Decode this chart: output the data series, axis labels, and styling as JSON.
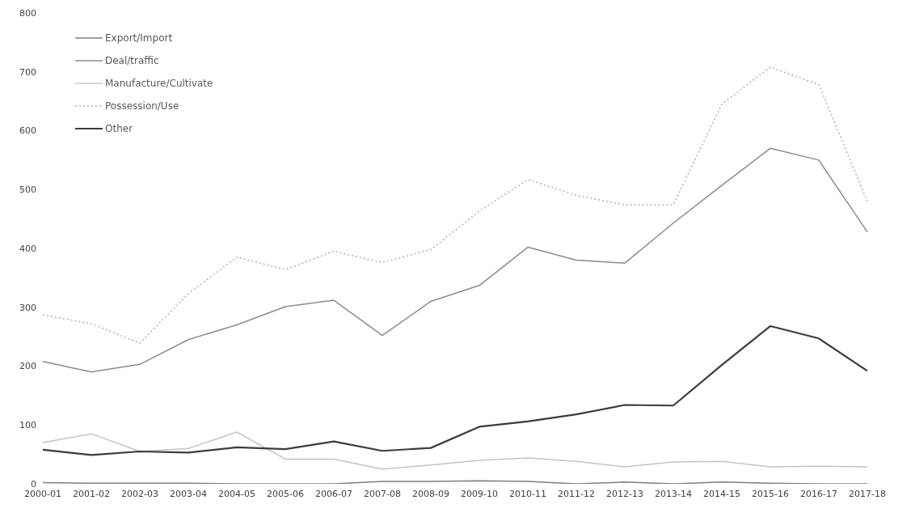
{
  "chart_data": {
    "type": "line",
    "categories": [
      "2000-01",
      "2001-02",
      "2002-03",
      "2003-04",
      "2004-05",
      "2005-06",
      "2006-07",
      "2007-08",
      "2008-09",
      "2009-10",
      "2010-11",
      "2011-12",
      "2012-13",
      "2013-14",
      "2014-15",
      "2015-16",
      "2016-17",
      "2017-18"
    ],
    "series": [
      {
        "name": "Export/Import",
        "color": "#7f7f7f",
        "line_style": "solid",
        "values": [
          2,
          1,
          1,
          1,
          0,
          0,
          0,
          4,
          4,
          5,
          4,
          0,
          3,
          0,
          3,
          1,
          0,
          0
        ]
      },
      {
        "name": "Deal/traffic",
        "color": "#8c8c8c",
        "line_style": "solid",
        "values": [
          208,
          190,
          203,
          245,
          270,
          301,
          312,
          252,
          310,
          337,
          402,
          380,
          375,
          443,
          507,
          570,
          550,
          428
        ]
      },
      {
        "name": "Manufacture/Cultivate",
        "color": "#c4c4c4",
        "line_style": "solid",
        "values": [
          70,
          85,
          55,
          60,
          88,
          42,
          42,
          25,
          32,
          40,
          44,
          38,
          29,
          37,
          38,
          29,
          30,
          29
        ]
      },
      {
        "name": "Possession/Use",
        "color": "#b0b0b0",
        "line_style": "dotted",
        "values": [
          287,
          272,
          239,
          323,
          385,
          364,
          395,
          376,
          398,
          463,
          517,
          490,
          474,
          474,
          645,
          708,
          678,
          480
        ]
      },
      {
        "name": "Other",
        "color": "#3c3c3c",
        "line_style": "solid",
        "values": [
          58,
          49,
          55,
          53,
          62,
          59,
          72,
          56,
          61,
          97,
          106,
          118,
          134,
          133,
          202,
          268,
          247,
          192
        ]
      }
    ],
    "ylim": [
      0,
      800
    ],
    "yticks": [
      0,
      100,
      200,
      300,
      400,
      500,
      600,
      700,
      800
    ],
    "grid": false,
    "legend": "top left",
    "marker": "none"
  }
}
